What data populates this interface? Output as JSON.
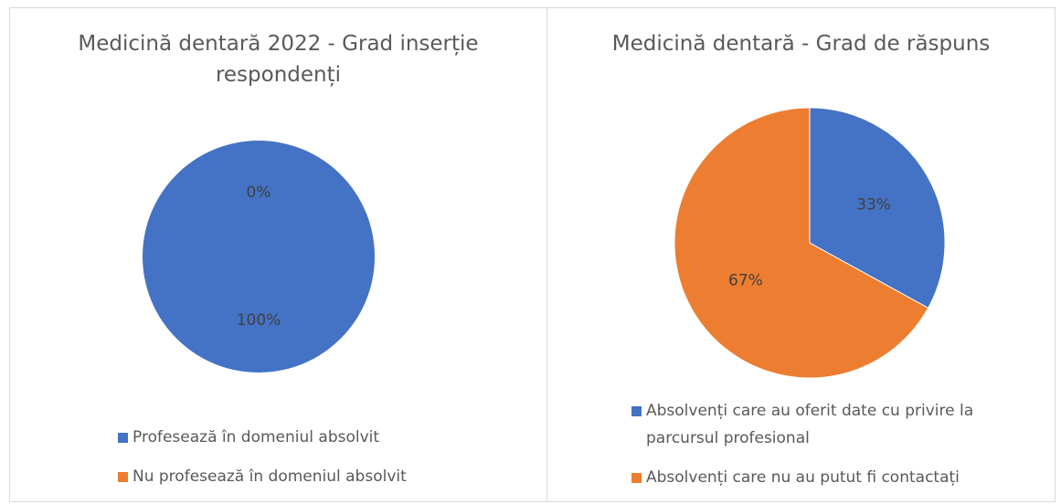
{
  "chart_data": [
    {
      "type": "pie",
      "title": "Medicină dentară 2022 - Grad inserție respondenți",
      "categories": [
        "Profesează în domeniul absolvit",
        "Nu profesează în domeniul absolvit"
      ],
      "values": [
        100,
        0
      ],
      "value_labels": [
        "100%",
        "0%"
      ],
      "colors": [
        "#4472c4",
        "#ed7d31"
      ]
    },
    {
      "type": "pie",
      "title": "Medicină dentară - Grad de răspuns",
      "categories": [
        "Absolvenți care au oferit date cu privire la parcursul profesional",
        "Absolvenți care nu au putut fi contactați"
      ],
      "values": [
        33,
        67
      ],
      "value_labels": [
        "33%",
        "67%"
      ],
      "colors": [
        "#4472c4",
        "#ed7d31"
      ]
    }
  ]
}
